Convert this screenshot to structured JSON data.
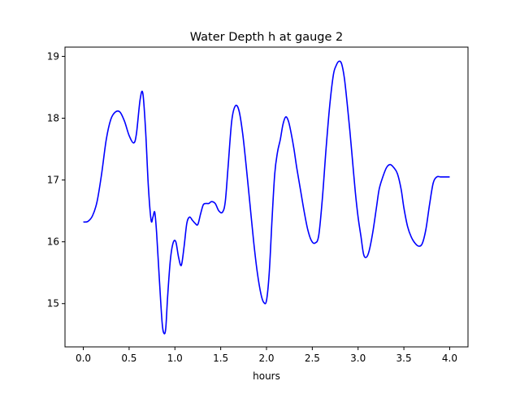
{
  "chart_data": {
    "type": "line",
    "title": "Water Depth h at gauge 2",
    "xlabel": "hours",
    "ylabel": "",
    "xlim": [
      -0.2,
      4.2
    ],
    "ylim": [
      14.3,
      19.15
    ],
    "xticks": [
      0.0,
      0.5,
      1.0,
      1.5,
      2.0,
      2.5,
      3.0,
      3.5,
      4.0
    ],
    "xtick_labels": [
      "0.0",
      "0.5",
      "1.0",
      "1.5",
      "2.0",
      "2.5",
      "3.0",
      "3.5",
      "4.0"
    ],
    "yticks": [
      15,
      16,
      17,
      18,
      19
    ],
    "ytick_labels": [
      "15",
      "16",
      "17",
      "18",
      "19"
    ],
    "grid": false,
    "legend": "none",
    "series": [
      {
        "color": "#0000ff",
        "x": [
          0.0,
          0.05,
          0.1,
          0.15,
          0.2,
          0.25,
          0.3,
          0.35,
          0.4,
          0.45,
          0.5,
          0.55,
          0.58,
          0.62,
          0.65,
          0.68,
          0.71,
          0.74,
          0.76,
          0.78,
          0.8,
          0.83,
          0.86,
          0.88,
          0.9,
          0.92,
          0.95,
          0.98,
          1.01,
          1.04,
          1.07,
          1.1,
          1.13,
          1.16,
          1.19,
          1.22,
          1.25,
          1.28,
          1.31,
          1.34,
          1.37,
          1.4,
          1.44,
          1.48,
          1.52,
          1.55,
          1.58,
          1.62,
          1.66,
          1.7,
          1.74,
          1.78,
          1.82,
          1.86,
          1.9,
          1.94,
          1.97,
          2.0,
          2.03,
          2.06,
          2.09,
          2.12,
          2.15,
          2.18,
          2.21,
          2.24,
          2.27,
          2.3,
          2.33,
          2.37,
          2.41,
          2.45,
          2.49,
          2.53,
          2.57,
          2.61,
          2.65,
          2.69,
          2.73,
          2.76,
          2.79,
          2.82,
          2.85,
          2.88,
          2.91,
          2.94,
          2.97,
          3.0,
          3.03,
          3.06,
          3.09,
          3.12,
          3.16,
          3.2,
          3.23,
          3.27,
          3.31,
          3.35,
          3.39,
          3.43,
          3.47,
          3.5,
          3.54,
          3.58,
          3.62,
          3.66,
          3.7,
          3.74,
          3.78,
          3.82,
          3.86,
          3.9,
          3.94,
          3.98,
          4.0
        ],
        "y": [
          16.32,
          16.33,
          16.42,
          16.65,
          17.1,
          17.65,
          17.98,
          18.1,
          18.1,
          17.95,
          17.72,
          17.6,
          17.75,
          18.3,
          18.4,
          17.8,
          16.9,
          16.35,
          16.4,
          16.48,
          16.15,
          15.4,
          14.7,
          14.52,
          14.6,
          15.1,
          15.7,
          15.98,
          16.0,
          15.75,
          15.62,
          15.92,
          16.3,
          16.4,
          16.35,
          16.3,
          16.28,
          16.45,
          16.6,
          16.62,
          16.62,
          16.65,
          16.62,
          16.5,
          16.48,
          16.65,
          17.2,
          17.95,
          18.2,
          18.12,
          17.75,
          17.2,
          16.6,
          16.0,
          15.5,
          15.15,
          15.02,
          15.05,
          15.5,
          16.35,
          17.1,
          17.45,
          17.65,
          17.9,
          18.02,
          17.95,
          17.75,
          17.5,
          17.2,
          16.85,
          16.5,
          16.2,
          16.02,
          15.98,
          16.1,
          16.7,
          17.5,
          18.2,
          18.7,
          18.85,
          18.92,
          18.88,
          18.65,
          18.25,
          17.8,
          17.3,
          16.8,
          16.4,
          16.1,
          15.8,
          15.75,
          15.85,
          16.15,
          16.55,
          16.85,
          17.05,
          17.2,
          17.25,
          17.2,
          17.1,
          16.85,
          16.55,
          16.25,
          16.08,
          15.98,
          15.93,
          15.97,
          16.2,
          16.6,
          16.95,
          17.05,
          17.05,
          17.05,
          17.05,
          17.05
        ]
      }
    ]
  }
}
